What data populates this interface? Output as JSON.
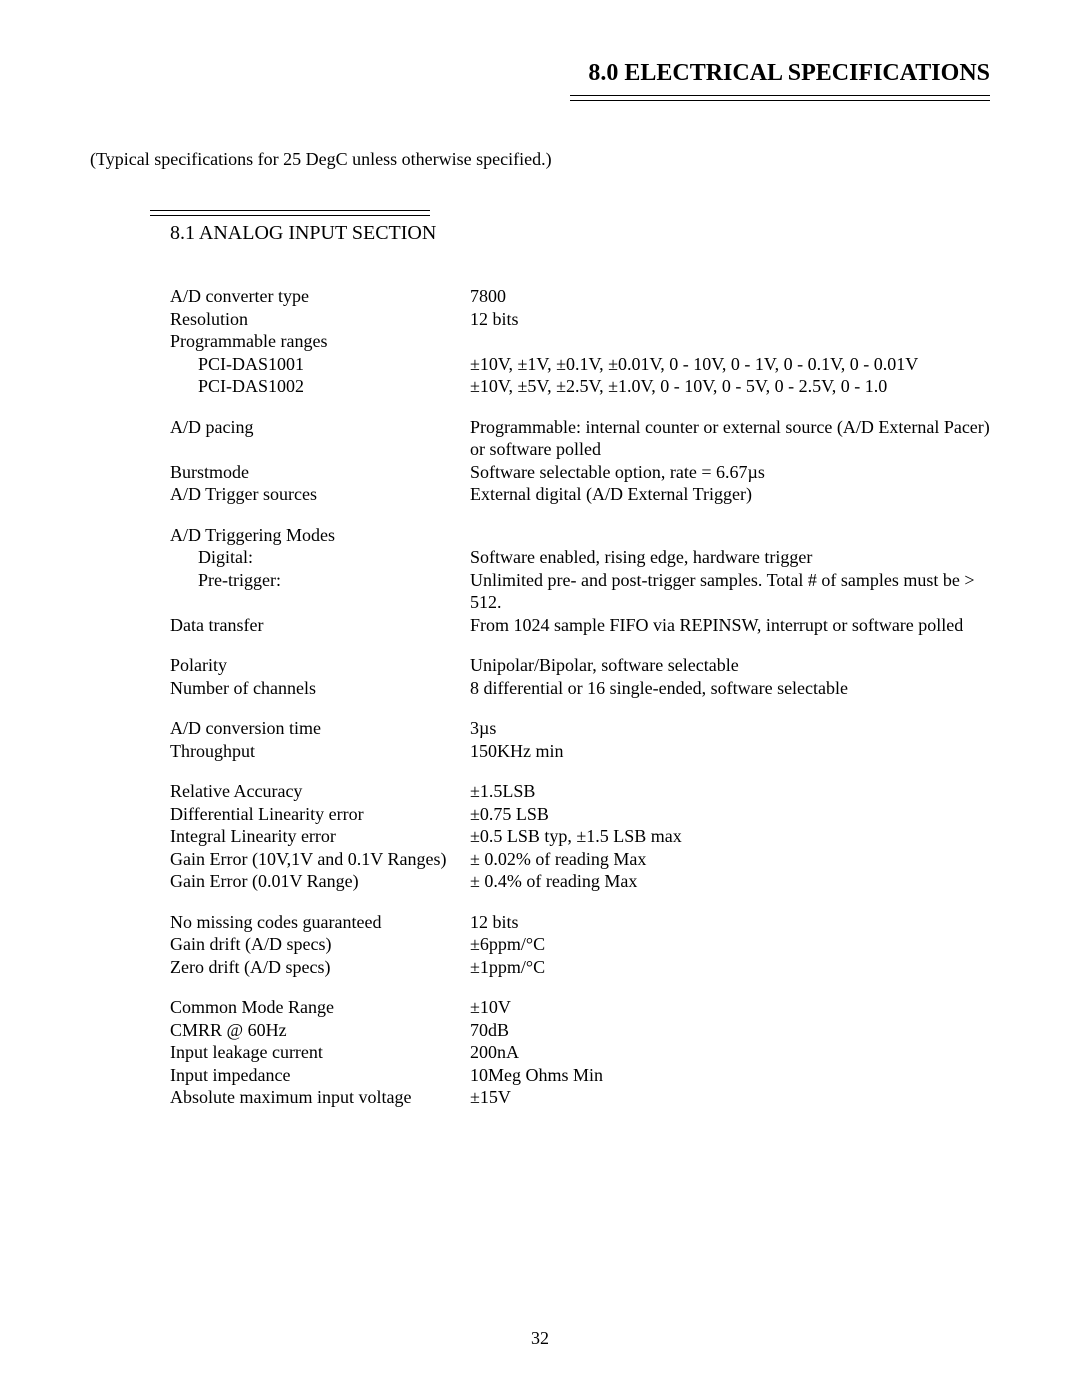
{
  "page_title": "8.0 ELECTRICAL SPECIFICATIONS",
  "intro": "(Typical specifications for 25 DegC unless otherwise specified.)",
  "section_title": "8.1 ANALOG INPUT SECTION",
  "page_number": "32",
  "specs": {
    "ad_converter_type": {
      "label": "A/D converter type",
      "value": "7800"
    },
    "resolution": {
      "label": "Resolution",
      "value": "12 bits"
    },
    "programmable_ranges": {
      "label": "Programmable ranges",
      "value": ""
    },
    "pci_das1001": {
      "label": "PCI-DAS1001",
      "value": "±10V,  ±1V, ±0.1V,  ±0.01V, 0 - 10V, 0 - 1V, 0 - 0.1V, 0 - 0.01V"
    },
    "pci_das1002": {
      "label": "PCI-DAS1002",
      "value": "±10V,  ±5V, ±2.5V,  ±1.0V, 0 - 10V, 0 - 5V, 0 - 2.5V, 0 - 1.0"
    },
    "ad_pacing": {
      "label": "A/D pacing",
      "value": "Programmable:  internal counter or external source (A/D External Pacer) or software polled"
    },
    "burstmode": {
      "label": "Burstmode",
      "value": "Software selectable option, rate = 6.67µs"
    },
    "ad_trigger_sources": {
      "label": "A/D Trigger sources",
      "value": "External digital (A/D External Trigger)"
    },
    "ad_triggering_modes": {
      "label": "A/D Triggering Modes",
      "value": ""
    },
    "digital": {
      "label": "Digital:",
      "value": "Software enabled, rising edge, hardware trigger"
    },
    "pre_trigger": {
      "label": "Pre-trigger:",
      "value": "Unlimited pre- and post-trigger samples.  Total # of samples must be > 512."
    },
    "data_transfer": {
      "label": "Data transfer",
      "value": "From 1024 sample FIFO via REPINSW, interrupt or software polled"
    },
    "polarity": {
      "label": "Polarity",
      "value": "Unipolar/Bipolar, software selectable"
    },
    "number_of_channels": {
      "label": "Number of channels",
      "value": "8 differential or 16 single-ended, software selectable"
    },
    "ad_conversion_time": {
      "label": "A/D conversion time",
      "value": "3µs"
    },
    "throughput": {
      "label": "Throughput",
      "value": "150KHz min"
    },
    "relative_accuracy": {
      "label": "Relative Accuracy",
      "value": "±1.5LSB"
    },
    "differential_linearity_error": {
      "label": "Differential Linearity error",
      "value": "±0.75 LSB"
    },
    "integral_linearity_error": {
      "label": "Integral Linearity error",
      "value": "±0.5 LSB typ, ±1.5 LSB max"
    },
    "gain_error_10v": {
      "label": "Gain Error  (10V,1V and 0.1V Ranges)",
      "value": "± 0.02% of reading Max"
    },
    "gain_error_001v": {
      "label": "Gain Error (0.01V Range)",
      "value": "± 0.4% of reading Max"
    },
    "no_missing_codes": {
      "label": "No missing codes guaranteed",
      "value": "12 bits"
    },
    "gain_drift": {
      "label": "Gain drift (A/D specs)",
      "value": "±6ppm/°C"
    },
    "zero_drift": {
      "label": "Zero drift (A/D specs)",
      "value": "±1ppm/°C"
    },
    "common_mode_range": {
      "label": "Common Mode Range",
      "value": "±10V"
    },
    "cmrr_60hz": {
      "label": "CMRR @ 60Hz",
      "value": "70dB"
    },
    "input_leakage_current": {
      "label": "Input leakage current",
      "value": "200nA"
    },
    "input_impedance": {
      "label": "Input impedance",
      "value": "10Meg Ohms Min"
    },
    "absolute_max_input_voltage": {
      "label": "Absolute maximum input voltage",
      "value": "±15V"
    }
  }
}
